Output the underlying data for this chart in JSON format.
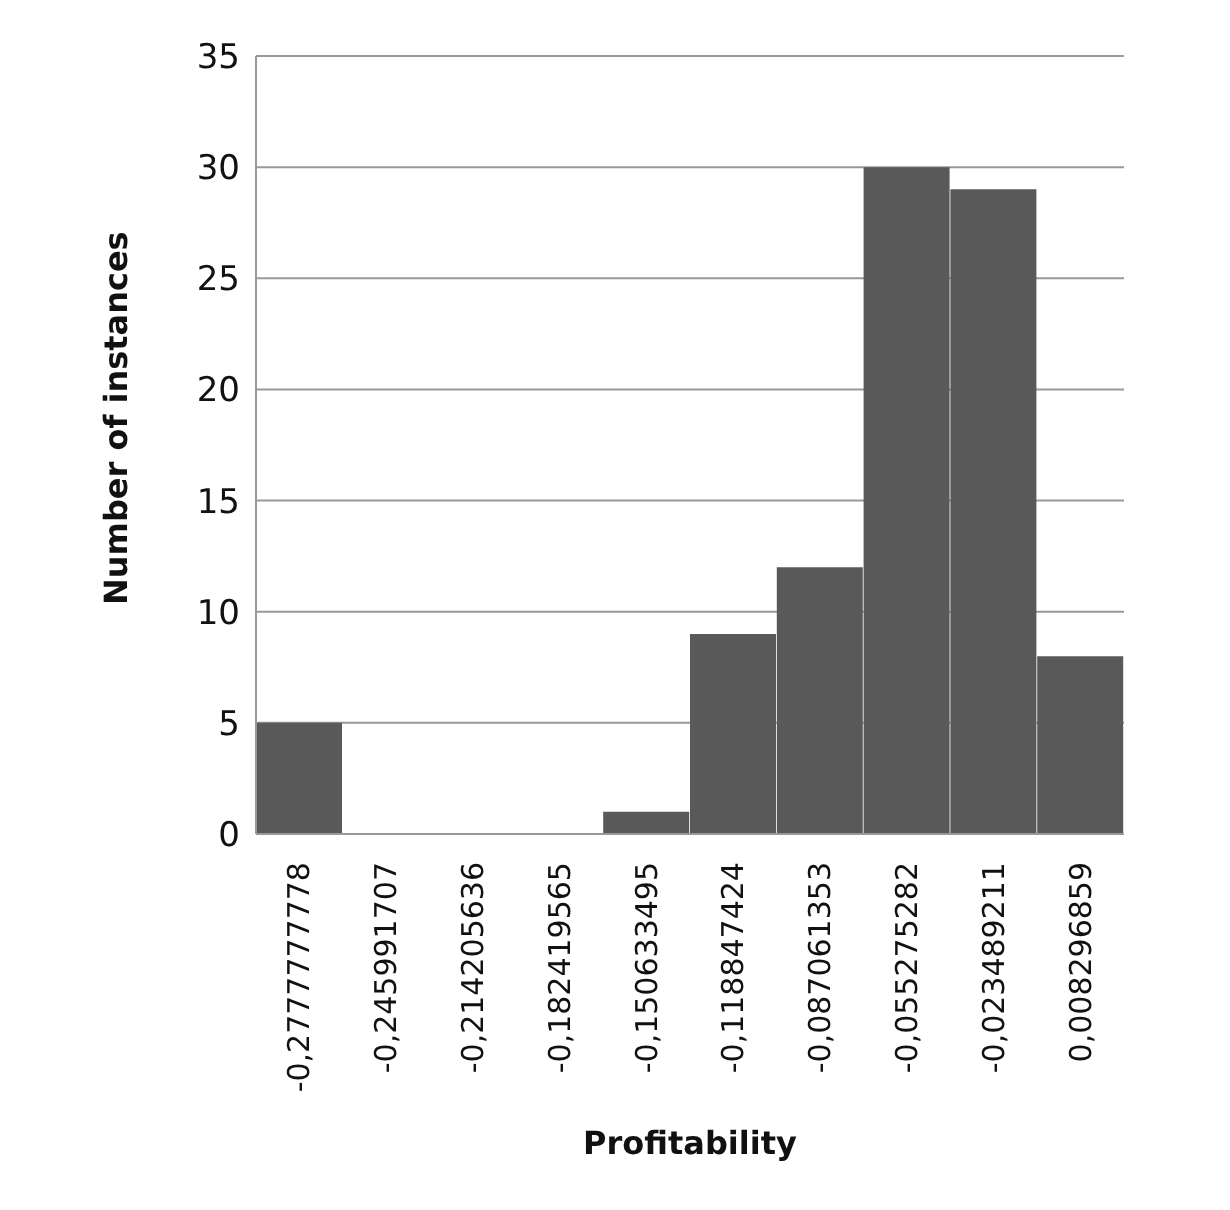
{
  "chart_data": {
    "type": "bar",
    "xlabel": "Profitability",
    "ylabel": "Number of instances",
    "categories": [
      "-0,2777777778",
      "-0,245991707",
      "-0,214205636",
      "-0,182419565",
      "-0,150633495",
      "-0,118847424",
      "-0,087061353",
      "-0,055275282",
      "-0,023489211",
      "0,008296859"
    ],
    "values": [
      5,
      0,
      0,
      0,
      1,
      9,
      12,
      30,
      29,
      8
    ],
    "color": "#595959",
    "ylim": [
      0,
      35
    ],
    "yticks": [
      0,
      5,
      10,
      15,
      20,
      25,
      30,
      35
    ],
    "grid": "y"
  }
}
